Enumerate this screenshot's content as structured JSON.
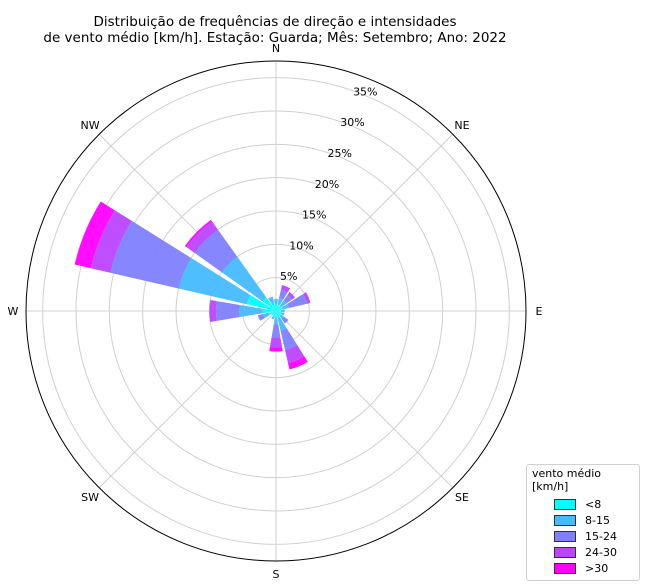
{
  "chart_data": {
    "type": "windrose",
    "title_lines": [
      "Distribuição de frequências de direção e intensidades",
      "de vento médio [km/h]. Estação: Guarda; Mês: Setembro; Ano: 2022"
    ],
    "directions": [
      "N",
      "NE",
      "E",
      "SE",
      "S",
      "SW",
      "W",
      "NW"
    ],
    "radial_ticks": [
      "5%",
      "10%",
      "15%",
      "20%",
      "25%",
      "30%",
      "35%"
    ],
    "rmax": 37.5,
    "legend_title": "vento médio [km/h]",
    "bins": [
      {
        "label": "<8",
        "color": "#00ffff"
      },
      {
        "label": "8-15",
        "color": "#44bbff"
      },
      {
        "label": "15-24",
        "color": "#8080ff"
      },
      {
        "label": "24-30",
        "color": "#bb44ff"
      },
      {
        "label": ">30",
        "color": "#ff00ff"
      }
    ],
    "sectors": [
      {
        "center_deg": 0,
        "values": [
          1.0,
          0.8,
          0,
          0,
          0
        ]
      },
      {
        "center_deg": 22.5,
        "values": [
          1.0,
          1.0,
          1.3,
          0.7,
          0
        ]
      },
      {
        "center_deg": 45,
        "values": [
          1.0,
          1.0,
          1.0,
          0.5,
          0
        ]
      },
      {
        "center_deg": 67.5,
        "values": [
          1.0,
          1.0,
          2.8,
          0.5,
          0
        ]
      },
      {
        "center_deg": 90,
        "values": [
          0.8,
          0.5,
          0,
          0,
          0
        ]
      },
      {
        "center_deg": 112.5,
        "values": [
          0.8,
          0.5,
          0,
          0,
          0
        ]
      },
      {
        "center_deg": 135,
        "values": [
          1.0,
          0.5,
          0.8,
          0,
          0
        ]
      },
      {
        "center_deg": 157.5,
        "values": [
          1.0,
          2.0,
          3.0,
          2.0,
          1.0
        ]
      },
      {
        "center_deg": 180,
        "values": [
          1.0,
          1.0,
          2.0,
          1.5,
          0.6
        ]
      },
      {
        "center_deg": 202.5,
        "values": [
          0.8,
          0.5,
          0,
          0,
          0
        ]
      },
      {
        "center_deg": 225,
        "values": [
          0.8,
          0,
          0,
          0,
          0
        ]
      },
      {
        "center_deg": 247.5,
        "values": [
          1.0,
          1.0,
          0.8,
          0,
          0
        ]
      },
      {
        "center_deg": 270,
        "values": [
          2.0,
          3.5,
          3.5,
          1.0,
          0
        ]
      },
      {
        "center_deg": 292.5,
        "values": [
          4.5,
          10.5,
          10.5,
          3.0,
          2.5
        ]
      },
      {
        "center_deg": 315,
        "values": [
          2.5,
          7.5,
          5.0,
          1.5,
          0.3
        ]
      },
      {
        "center_deg": 337.5,
        "values": [
          1.2,
          1.0,
          0,
          0,
          0
        ]
      }
    ]
  }
}
